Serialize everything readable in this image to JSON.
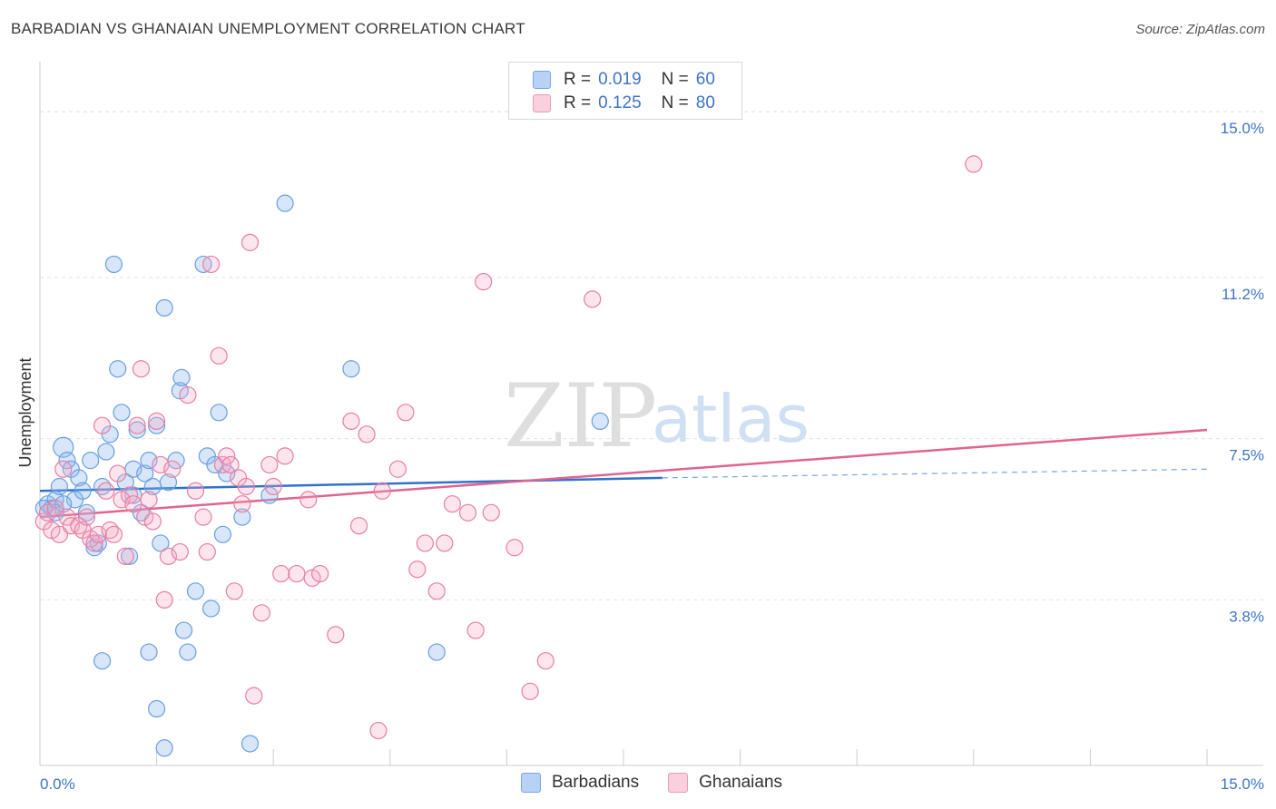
{
  "title": "BARBADIAN VS GHANAIAN UNEMPLOYMENT CORRELATION CHART",
  "source": "Source: ZipAtlas.com",
  "watermark": {
    "zip": "ZIP",
    "atlas": "atlas"
  },
  "legend": {
    "rows": [
      {
        "r_label": "R =",
        "r_value": "0.019",
        "n_label": "N =",
        "n_value": "60",
        "color": "#a8c8f0",
        "border": "#7aa6de"
      },
      {
        "r_label": "R =",
        "r_value": "0.125",
        "n_label": "N =",
        "n_value": "80",
        "color": "#f8c4d4",
        "border": "#e89ab4"
      }
    ],
    "bottom": [
      {
        "label": "Barbadians",
        "color": "#a8c8f0",
        "border": "#7aa6de"
      },
      {
        "label": "Ghanaians",
        "color": "#f8c4d4",
        "border": "#e89ab4"
      }
    ]
  },
  "chart_data": {
    "type": "scatter",
    "title": "BARBADIAN VS GHANAIAN UNEMPLOYMENT CORRELATION CHART",
    "xlabel": "",
    "ylabel": "Unemployment",
    "xlim": [
      0,
      15
    ],
    "ylim": [
      0,
      15.9
    ],
    "x_tick_labels": [
      {
        "value": 0,
        "label": "0.0%"
      },
      {
        "value": 15,
        "label": "15.0%"
      }
    ],
    "y_tick_labels": [
      {
        "value": 3.8,
        "label": "3.8%"
      },
      {
        "value": 7.5,
        "label": "7.5%"
      },
      {
        "value": 11.2,
        "label": "11.2%"
      },
      {
        "value": 15.0,
        "label": "15.0%"
      }
    ],
    "series": [
      {
        "name": "Barbadians",
        "color": "#6b9fe0",
        "fill": "rgba(140,184,238,0.35)",
        "trend": {
          "x0": 0,
          "y0": 6.3,
          "x1": 8.0,
          "y1": 6.6,
          "dash_to_x": 15,
          "dash_to_y": 6.8
        },
        "points": [
          [
            0.1,
            6.0
          ],
          [
            0.15,
            5.9
          ],
          [
            0.2,
            6.1
          ],
          [
            0.25,
            6.4
          ],
          [
            0.3,
            7.3
          ],
          [
            0.35,
            7.0
          ],
          [
            0.4,
            6.8
          ],
          [
            0.45,
            6.1
          ],
          [
            0.5,
            6.6
          ],
          [
            0.55,
            6.3
          ],
          [
            0.6,
            5.8
          ],
          [
            0.65,
            7.0
          ],
          [
            0.7,
            5.0
          ],
          [
            0.75,
            5.1
          ],
          [
            0.8,
            6.4
          ],
          [
            0.85,
            7.2
          ],
          [
            0.9,
            7.6
          ],
          [
            0.95,
            11.5
          ],
          [
            1.0,
            9.1
          ],
          [
            1.05,
            8.1
          ],
          [
            1.1,
            6.5
          ],
          [
            1.15,
            4.8
          ],
          [
            1.2,
            6.8
          ],
          [
            1.25,
            7.7
          ],
          [
            1.3,
            5.8
          ],
          [
            1.35,
            6.7
          ],
          [
            1.4,
            7.0
          ],
          [
            1.45,
            6.4
          ],
          [
            1.5,
            7.8
          ],
          [
            1.55,
            5.1
          ],
          [
            1.6,
            10.5
          ],
          [
            1.65,
            6.5
          ],
          [
            1.75,
            7.0
          ],
          [
            1.8,
            8.6
          ],
          [
            1.82,
            8.9
          ],
          [
            1.85,
            3.1
          ],
          [
            1.9,
            2.6
          ],
          [
            2.0,
            4.0
          ],
          [
            2.1,
            11.5
          ],
          [
            2.15,
            7.1
          ],
          [
            2.2,
            3.6
          ],
          [
            2.25,
            6.9
          ],
          [
            2.3,
            8.1
          ],
          [
            2.35,
            5.3
          ],
          [
            2.4,
            6.7
          ],
          [
            2.6,
            5.7
          ],
          [
            2.7,
            0.5
          ],
          [
            2.95,
            6.2
          ],
          [
            3.15,
            12.9
          ],
          [
            4.0,
            9.1
          ],
          [
            5.1,
            2.6
          ],
          [
            7.2,
            7.9
          ],
          [
            1.5,
            1.3
          ],
          [
            1.6,
            0.4
          ],
          [
            0.8,
            2.4
          ],
          [
            1.4,
            2.6
          ],
          [
            0.3,
            6.0
          ],
          [
            0.2,
            5.8
          ],
          [
            0.05,
            5.9
          ],
          [
            1.2,
            6.2
          ]
        ]
      },
      {
        "name": "Ghanaians",
        "color": "#e87ea3",
        "fill": "rgba(245,170,195,0.30)",
        "trend": {
          "x0": 0,
          "y0": 5.7,
          "x1": 15,
          "y1": 7.7
        },
        "points": [
          [
            0.05,
            5.6
          ],
          [
            0.1,
            5.8
          ],
          [
            0.15,
            5.4
          ],
          [
            0.2,
            5.9
          ],
          [
            0.25,
            5.3
          ],
          [
            0.3,
            6.8
          ],
          [
            0.35,
            5.7
          ],
          [
            0.4,
            5.5
          ],
          [
            0.5,
            5.5
          ],
          [
            0.55,
            5.4
          ],
          [
            0.6,
            5.7
          ],
          [
            0.65,
            5.2
          ],
          [
            0.7,
            5.1
          ],
          [
            0.75,
            5.3
          ],
          [
            0.8,
            7.8
          ],
          [
            0.85,
            6.3
          ],
          [
            0.9,
            5.4
          ],
          [
            0.95,
            5.3
          ],
          [
            1.0,
            6.7
          ],
          [
            1.05,
            6.1
          ],
          [
            1.1,
            4.8
          ],
          [
            1.15,
            6.2
          ],
          [
            1.2,
            6.0
          ],
          [
            1.25,
            7.8
          ],
          [
            1.3,
            9.1
          ],
          [
            1.35,
            5.7
          ],
          [
            1.4,
            6.1
          ],
          [
            1.45,
            5.6
          ],
          [
            1.5,
            7.9
          ],
          [
            1.55,
            6.9
          ],
          [
            1.6,
            3.8
          ],
          [
            1.65,
            4.8
          ],
          [
            1.7,
            6.8
          ],
          [
            1.8,
            4.9
          ],
          [
            1.9,
            8.5
          ],
          [
            2.0,
            6.3
          ],
          [
            2.1,
            5.7
          ],
          [
            2.15,
            4.9
          ],
          [
            2.2,
            11.5
          ],
          [
            2.3,
            9.4
          ],
          [
            2.35,
            6.9
          ],
          [
            2.4,
            7.1
          ],
          [
            2.45,
            6.9
          ],
          [
            2.5,
            4.0
          ],
          [
            2.55,
            6.6
          ],
          [
            2.6,
            6.0
          ],
          [
            2.65,
            6.4
          ],
          [
            2.7,
            12.0
          ],
          [
            2.75,
            1.6
          ],
          [
            2.85,
            3.5
          ],
          [
            2.95,
            6.9
          ],
          [
            3.0,
            6.4
          ],
          [
            3.1,
            4.4
          ],
          [
            3.15,
            7.1
          ],
          [
            3.3,
            4.4
          ],
          [
            3.45,
            6.1
          ],
          [
            3.5,
            4.3
          ],
          [
            3.6,
            4.4
          ],
          [
            3.8,
            3.0
          ],
          [
            4.0,
            7.9
          ],
          [
            4.1,
            5.5
          ],
          [
            4.2,
            7.6
          ],
          [
            4.35,
            0.8
          ],
          [
            4.4,
            6.3
          ],
          [
            4.6,
            6.8
          ],
          [
            4.7,
            8.1
          ],
          [
            4.85,
            4.5
          ],
          [
            4.95,
            5.1
          ],
          [
            5.1,
            4.0
          ],
          [
            5.3,
            6.0
          ],
          [
            5.5,
            5.8
          ],
          [
            5.6,
            3.1
          ],
          [
            5.8,
            5.8
          ],
          [
            6.1,
            5.0
          ],
          [
            6.3,
            1.7
          ],
          [
            6.5,
            2.4
          ],
          [
            7.1,
            10.7
          ],
          [
            12.0,
            13.8
          ],
          [
            5.7,
            11.1
          ],
          [
            5.2,
            5.1
          ]
        ]
      }
    ]
  }
}
